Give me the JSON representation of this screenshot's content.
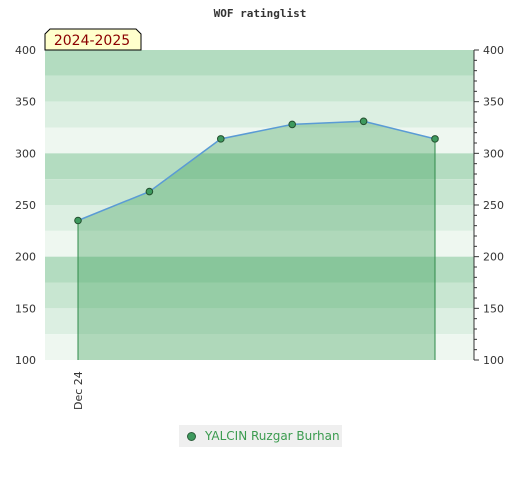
{
  "chart_data": {
    "type": "area",
    "title": "WOF ratinglist",
    "season_label": "2024-2025",
    "x_tick_labels": [
      "Dec 24"
    ],
    "points": [
      {
        "x": 0,
        "y": 235
      },
      {
        "x": 1,
        "y": 263
      },
      {
        "x": 2,
        "y": 314
      },
      {
        "x": 3,
        "y": 328
      },
      {
        "x": 4,
        "y": 331
      },
      {
        "x": 5,
        "y": 314
      }
    ],
    "series": [
      {
        "name": "YALCIN Ruzgar Burhan",
        "values": [
          235,
          263,
          314,
          328,
          331,
          314
        ]
      }
    ],
    "ylim": [
      100,
      400
    ],
    "y_ticks": [
      100,
      150,
      200,
      250,
      300,
      350,
      400
    ],
    "colors": {
      "fill": "#3a9d55",
      "line": "#5a9bd5",
      "marker": "#3e9a5e",
      "band_dark": "#b3dcc0",
      "band_mid": "#c8e6d1",
      "band_light": "#dcefe2",
      "band_pale": "#eef7f0"
    }
  },
  "legend": {
    "label": "YALCIN Ruzgar Burhan"
  }
}
